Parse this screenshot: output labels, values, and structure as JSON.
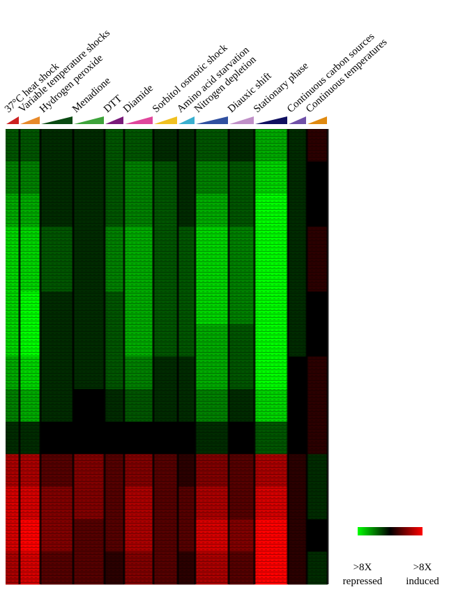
{
  "chart_data": {
    "type": "heatmap",
    "series": [
      {
        "name": "37°C heat shock",
        "color": "#cc2020",
        "values": [
          -1,
          -1.5,
          -2,
          -2.5,
          -2.5,
          -2.5,
          -2.5,
          -2,
          -1.5,
          -0.5,
          2,
          2.5,
          2.5,
          2
        ]
      },
      {
        "name": "Variable temperature shocks",
        "color": "#e88a2a",
        "values": [
          -1,
          -1.5,
          -2,
          -2.5,
          -2.5,
          -3,
          -3,
          -2.5,
          -2,
          -0.5,
          2,
          2.5,
          3,
          2.5
        ]
      },
      {
        "name": "Hydrogen peroxide",
        "color": "#0a4a12",
        "values": [
          -0.5,
          -0.5,
          -0.5,
          -1,
          -1,
          -0.5,
          -0.5,
          -0.5,
          -0.5,
          0,
          1,
          1.5,
          1.5,
          1
        ]
      },
      {
        "name": "Menadione",
        "color": "#3da33a",
        "values": [
          -0.5,
          -0.5,
          -0.5,
          -0.5,
          -0.5,
          -0.5,
          -0.5,
          -0.5,
          0,
          0,
          1.5,
          1.5,
          1,
          1
        ]
      },
      {
        "name": "DTT",
        "color": "#7a1a7a",
        "values": [
          -1,
          -1,
          -1,
          -1.5,
          -1.5,
          -1,
          -1,
          -1,
          -0.5,
          0,
          1,
          1,
          1,
          0.5
        ]
      },
      {
        "name": "Diamide",
        "color": "#e0469c",
        "values": [
          -1,
          -1.5,
          -1.5,
          -2,
          -2,
          -2,
          -2,
          -1.5,
          -1,
          0,
          1.5,
          2,
          2,
          1.5
        ]
      },
      {
        "name": "Sorbitol osmotic shock",
        "color": "#f0c020",
        "values": [
          -0.5,
          -1,
          -1,
          -1,
          -1,
          -1,
          -1,
          -0.5,
          -0.5,
          0,
          1,
          1,
          1,
          1
        ]
      },
      {
        "name": "Amino acid starvation",
        "color": "#3ab0d0",
        "values": [
          -0.5,
          -0.5,
          -0.5,
          -1,
          -1,
          -1,
          -1,
          -0.5,
          -0.5,
          0,
          0.5,
          1,
          1,
          0.5
        ]
      },
      {
        "name": "Nitrogen depletion",
        "color": "#3050a0",
        "values": [
          -1,
          -1.5,
          -2,
          -2.5,
          -2.5,
          -2.5,
          -2,
          -2,
          -1.5,
          -0.5,
          1.5,
          2,
          2.5,
          2
        ]
      },
      {
        "name": "Diauxic shift",
        "color": "#c090c8",
        "values": [
          -0.5,
          -1,
          -1,
          -1.5,
          -1.5,
          -1.5,
          -1,
          -1,
          -0.5,
          0,
          1,
          1,
          1.5,
          1
        ]
      },
      {
        "name": "Stationary phase",
        "color": "#101060",
        "values": [
          -2,
          -2.5,
          -3,
          -3,
          -3,
          -3,
          -3,
          -3,
          -2.5,
          -1,
          2,
          2.5,
          3,
          3
        ]
      },
      {
        "name": "Continuous carbon sources",
        "color": "#7050a8",
        "values": [
          -0.5,
          -0.5,
          -0.5,
          -0.5,
          -0.5,
          -0.5,
          -0.5,
          0,
          0,
          0,
          0.5,
          0.5,
          0.5,
          0.5
        ]
      },
      {
        "name": "Continuous temperatures",
        "color": "#e08a10",
        "values": [
          0.5,
          0,
          0,
          0.5,
          0.5,
          0,
          0,
          0.5,
          0.5,
          0.5,
          -0.5,
          -0.5,
          0,
          -0.5
        ]
      }
    ],
    "colorbar": {
      "zlim": [
        -3,
        3
      ],
      "colors": [
        "#00ff00",
        "#000000",
        "#ff0000"
      ],
      "low_label": [
        ">8X",
        "repressed"
      ],
      "high_label": [
        ">8X",
        "induced"
      ]
    }
  }
}
